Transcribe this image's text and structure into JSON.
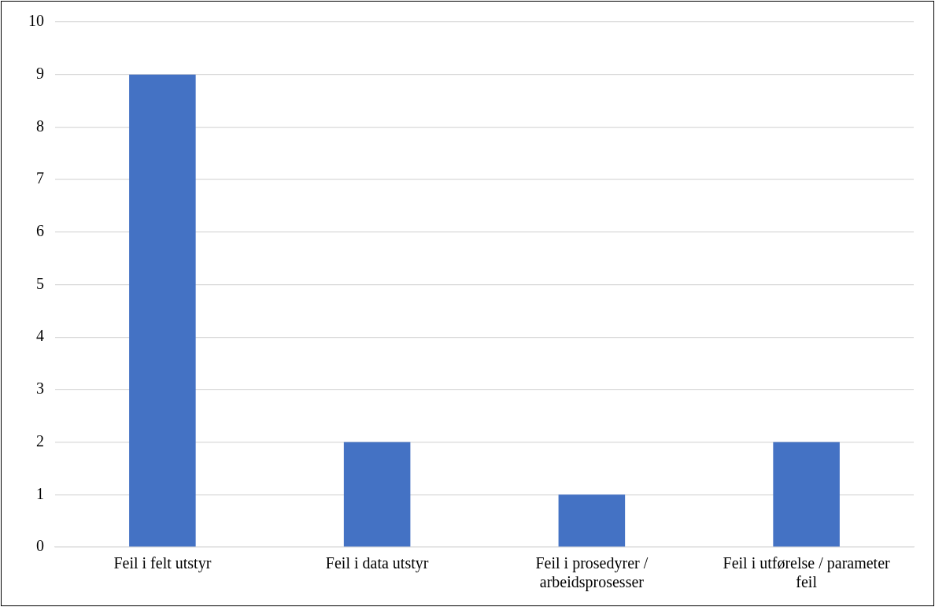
{
  "chart_data": {
    "type": "bar",
    "categories": [
      "Feil i felt utstyr",
      "Feil i data utstyr",
      "Feil i prosedyrer / arbeidsprosesser",
      "Feil i utførelse / parameter feil"
    ],
    "values": [
      9,
      2,
      1,
      2
    ],
    "color": "#4472c4",
    "ylim": [
      0,
      10
    ],
    "yticks": [
      0,
      1,
      2,
      3,
      4,
      5,
      6,
      7,
      8,
      9,
      10
    ],
    "grid": "y",
    "legend": false
  }
}
